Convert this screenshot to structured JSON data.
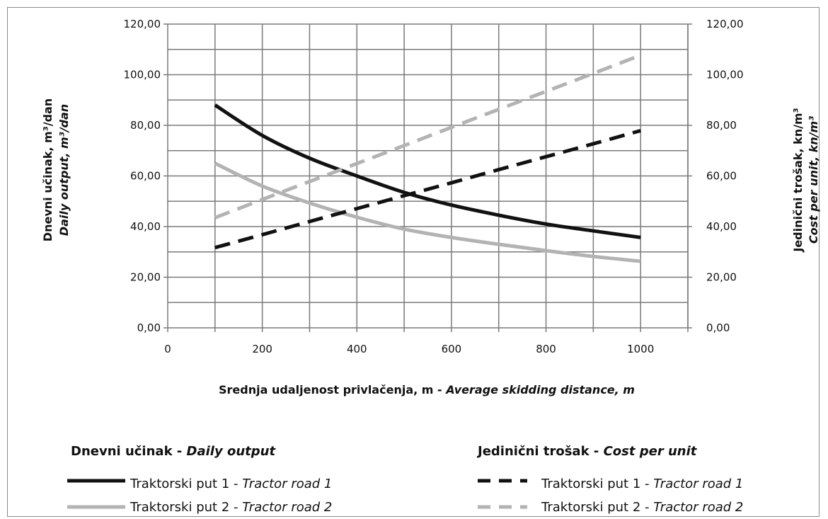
{
  "chart_data": {
    "type": "line",
    "x": [
      100,
      200,
      300,
      400,
      500,
      600,
      700,
      800,
      900,
      1000
    ],
    "x_axis": {
      "ticks": [
        "0",
        "200",
        "400",
        "600",
        "800",
        "1000"
      ],
      "range": [
        0,
        1100
      ],
      "title_main": "Srednja udaljenost privlačenja, m - ",
      "title_italic": "Average skidding distance, m"
    },
    "y_left": {
      "ticks": [
        "0,00",
        "20,00",
        "40,00",
        "60,00",
        "80,00",
        "100,00",
        "120,00"
      ],
      "range": [
        0,
        120
      ],
      "title_main": "Dnevni učinak, m³/dan",
      "title_italic": "Daily output, m³/dan"
    },
    "y_right": {
      "ticks": [
        "0,00",
        "20,00",
        "40,00",
        "60,00",
        "80,00",
        "100,00",
        "120,00"
      ],
      "range": [
        0,
        120
      ],
      "title_main": "Jedinični trošak, kn/m³",
      "title_italic": "Cost per unit, kn/m³"
    },
    "grid": true,
    "series": [
      {
        "name": "Traktorski put 1 - Tractor road 1",
        "group": "Dnevni učinak - Daily output",
        "axis": "left",
        "style": "solid",
        "color": "#111111",
        "values": [
          88.0,
          76.0,
          67.0,
          60.0,
          53.5,
          48.5,
          44.5,
          41.0,
          38.3,
          35.7
        ]
      },
      {
        "name": "Traktorski put 2 - Tractor road 2",
        "group": "Dnevni učinak - Daily output",
        "axis": "left",
        "style": "solid",
        "color": "#b3b3b3",
        "values": [
          65.0,
          56.0,
          49.3,
          43.7,
          39.0,
          35.7,
          33.0,
          30.5,
          28.2,
          26.3
        ]
      },
      {
        "name": "Traktorski put 1 - Tractor road 1",
        "group": "Jedinični trošak - Cost per unit",
        "axis": "right",
        "style": "dashed",
        "color": "#111111",
        "values": [
          31.7,
          36.8,
          42.0,
          47.1,
          52.2,
          57.3,
          62.5,
          67.6,
          72.7,
          77.9
        ]
      },
      {
        "name": "Traktorski put 2 - Tractor road 2",
        "group": "Jedinični trošak - Cost per unit",
        "axis": "right",
        "style": "dashed",
        "color": "#b3b3b3",
        "values": [
          43.5,
          50.7,
          57.8,
          64.9,
          72.0,
          79.2,
          86.3,
          93.4,
          100.5,
          107.7
        ]
      }
    ],
    "legend": {
      "placement": "bottom",
      "left_head_main": "Dnevni učinak - ",
      "left_head_italic": "Daily output",
      "right_head_main": "Jedinični trošak - ",
      "right_head_italic": "Cost per unit",
      "item_main": "Traktorski put ",
      "items": [
        {
          "num": "1 - ",
          "italic": "Tractor road 1"
        },
        {
          "num": "2 - ",
          "italic": "Tractor road 2"
        }
      ]
    }
  }
}
